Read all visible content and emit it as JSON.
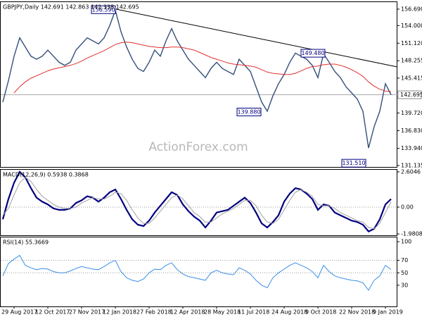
{
  "chart_data": [
    {
      "type": "line",
      "title": "GBPJPY,Daily 142.691 142.863 142.338 142.695",
      "watermark": "ActionForex.com",
      "ylim": [
        130.9,
        157.95
      ],
      "yticks": [
        {
          "value": 156.69,
          "label": "156.690"
        },
        {
          "value": 154,
          "label": "154.000"
        },
        {
          "value": 151.12,
          "label": "151.120"
        },
        {
          "value": 148.255,
          "label": "148.255"
        },
        {
          "value": 145.415,
          "label": "145.415"
        },
        {
          "value": 139.72,
          "label": "139.720"
        },
        {
          "value": 136.83,
          "label": "136.830"
        },
        {
          "value": 133.94,
          "label": "133.940"
        },
        {
          "value": 131.135,
          "label": "131.135"
        }
      ],
      "last_price": {
        "value": 142.695,
        "label": "142.695"
      },
      "grid": false,
      "annotations": [
        {
          "value": 156.59,
          "label": "156.590"
        },
        {
          "value": 149.48,
          "label": "149.480"
        },
        {
          "value": 139.88,
          "label": "139.880"
        },
        {
          "value": 131.51,
          "label": "131.510"
        }
      ],
      "series": [
        {
          "name": "GBPJPY",
          "color": "#34507a",
          "values": [
            141.5,
            145,
            149,
            152,
            150.5,
            149,
            148.5,
            149,
            150,
            149,
            148,
            147.5,
            148,
            150,
            151,
            152,
            151.5,
            151,
            152,
            154,
            156.5,
            153,
            150.5,
            148.5,
            147,
            146.5,
            148,
            150,
            149,
            151.5,
            153.5,
            151.5,
            150,
            148.5,
            147.5,
            146.5,
            145.5,
            147,
            148,
            147,
            146.5,
            146,
            148.5,
            147.5,
            146.5,
            144,
            141.5,
            140,
            142.5,
            144.5,
            146,
            148,
            149.5,
            149,
            148.5,
            147.5,
            145.5,
            149.4,
            148,
            146.5,
            145.5,
            144,
            143,
            142,
            140,
            134,
            137.5,
            140,
            144.5,
            142.7
          ]
        },
        {
          "name": "MA",
          "color": "#e03030",
          "values": [
            null,
            null,
            143,
            144,
            144.8,
            145.4,
            145.8,
            146.2,
            146.6,
            146.9,
            147.1,
            147.3,
            147.5,
            147.8,
            148.2,
            148.7,
            149.1,
            149.5,
            149.9,
            150.4,
            150.9,
            151.2,
            151.3,
            151.2,
            151,
            150.8,
            150.6,
            150.5,
            150.4,
            150.4,
            150.5,
            150.5,
            150.4,
            150.2,
            150,
            149.6,
            149.2,
            148.8,
            148.5,
            148.2,
            147.9,
            147.7,
            147.6,
            147.5,
            147.4,
            147.2,
            146.8,
            146.4,
            146.2,
            146.1,
            146,
            146,
            146.2,
            146.6,
            147,
            147.3,
            147.4,
            147.6,
            147.7,
            147.7,
            147.5,
            147.2,
            146.8,
            146.3,
            145.7,
            144.8,
            144.1,
            143.6,
            143.3,
            143.2
          ]
        }
      ]
    },
    {
      "type": "line",
      "title": "MACD(12,26,9) 0.5938 0.3868",
      "ylim": [
        -2.08,
        2.81
      ],
      "yticks": [
        2.6046,
        {
          "value": 0,
          "label": "0.00"
        },
        -1.9808
      ],
      "grid": true,
      "series": [
        {
          "name": "MACD",
          "color": "#000080",
          "values": [
            -0.9,
            0.6,
            1.8,
            2.6,
            2.2,
            1.4,
            0.7,
            0.4,
            0.2,
            -0.1,
            -0.2,
            -0.2,
            -0.1,
            0.3,
            0.5,
            0.8,
            0.7,
            0.4,
            0.7,
            1.1,
            1.3,
            0.6,
            -0.2,
            -0.9,
            -1.3,
            -1.4,
            -1.0,
            -0.4,
            0.1,
            0.6,
            1.1,
            0.9,
            0.2,
            -0.3,
            -0.7,
            -1.0,
            -1.5,
            -1.0,
            -0.4,
            -0.3,
            -0.2,
            0.1,
            0.4,
            0.7,
            0.3,
            -0.4,
            -1.2,
            -1.5,
            -1.1,
            -0.6,
            0.4,
            1.0,
            1.4,
            1.3,
            1.0,
            0.6,
            -0.2,
            0.2,
            0.1,
            -0.4,
            -0.6,
            -0.8,
            -1.0,
            -1.1,
            -1.3,
            -1.8,
            -1.6,
            -0.9,
            0.2,
            0.5938
          ]
        },
        {
          "name": "Signal",
          "color": "#a0a0a0",
          "values": [
            -0.6,
            -0.1,
            0.9,
            1.8,
            2.2,
            1.9,
            1.3,
            0.8,
            0.5,
            0.2,
            0.0,
            -0.1,
            -0.1,
            0.0,
            0.3,
            0.5,
            0.7,
            0.6,
            0.6,
            0.8,
            1.1,
            1.0,
            0.5,
            -0.2,
            -0.8,
            -1.2,
            -1.2,
            -0.8,
            -0.3,
            0.2,
            0.7,
            0.9,
            0.6,
            0.1,
            -0.4,
            -0.7,
            -1.1,
            -1.1,
            -0.8,
            -0.5,
            -0.3,
            -0.1,
            0.2,
            0.5,
            0.5,
            0.1,
            -0.6,
            -1.1,
            -1.2,
            -0.9,
            -0.2,
            0.5,
            1.1,
            1.3,
            1.1,
            0.8,
            0.2,
            0.1,
            0.1,
            -0.1,
            -0.4,
            -0.6,
            -0.8,
            -1.0,
            -1.1,
            -1.5,
            -1.6,
            -1.2,
            -0.4,
            0.3868
          ]
        }
      ]
    },
    {
      "type": "line",
      "title": "RSI(14) 55.3669",
      "ylim": [
        -4,
        108
      ],
      "yticks": [
        100,
        70,
        50,
        30
      ],
      "grid": true,
      "categories": [
        null,
        null,
        "29 Aug 2017",
        null,
        null,
        null,
        null,
        null,
        "12 Oct 2017",
        null,
        null,
        null,
        null,
        null,
        "27 Nov 2017",
        null,
        null,
        null,
        null,
        null,
        "12 Jan 2018",
        null,
        null,
        null,
        null,
        null,
        "27 Feb 2018",
        null,
        null,
        null,
        null,
        null,
        "12 Apr 2018",
        null,
        null,
        null,
        null,
        null,
        "28 May 2018",
        null,
        null,
        null,
        null,
        null,
        "11 Jul 2018",
        null,
        null,
        null,
        null,
        null,
        "24 Aug 2018",
        null,
        null,
        null,
        null,
        null,
        "9 Oct 2018",
        null,
        null,
        null,
        null,
        null,
        "22 Nov 2018",
        null,
        null,
        null,
        null,
        null,
        "9 Jan 2019",
        null
      ],
      "series": [
        {
          "name": "RSI",
          "color": "#3a8ee6",
          "values": [
            45,
            65,
            72,
            78,
            62,
            58,
            55,
            57,
            56,
            52,
            50,
            50,
            53,
            57,
            60,
            58,
            56,
            55,
            60,
            66,
            70,
            52,
            42,
            38,
            36,
            40,
            50,
            56,
            55,
            62,
            66,
            55,
            48,
            44,
            42,
            40,
            38,
            50,
            54,
            50,
            48,
            47,
            58,
            54,
            48,
            38,
            30,
            26,
            42,
            50,
            56,
            62,
            66,
            62,
            58,
            52,
            42,
            62,
            52,
            45,
            42,
            40,
            38,
            37,
            34,
            22,
            38,
            45,
            62,
            55.3669
          ]
        }
      ]
    }
  ]
}
